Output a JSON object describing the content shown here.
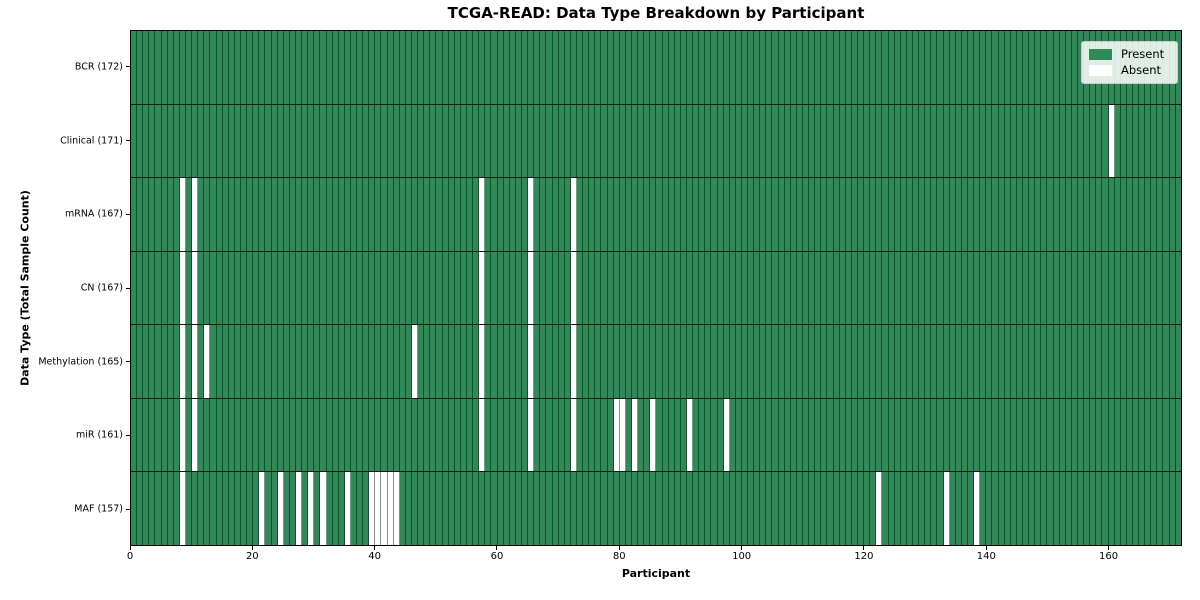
{
  "title": "TCGA-READ: Data Type Breakdown by Participant",
  "xlabel": "Participant",
  "ylabel": "Data Type (Total Sample Count)",
  "legend": {
    "items": [
      {
        "label": "Present",
        "color": "#2e8b57"
      },
      {
        "label": "Absent",
        "color": "#ffffff"
      }
    ]
  },
  "colors": {
    "present": "#2e8b57",
    "absent": "#ffffff",
    "cell_edge": "rgba(0,0,0,0.45)",
    "row_edge": "rgba(0,0,0,0.8)"
  },
  "chart_data": {
    "type": "heatmap",
    "n_participants": 172,
    "x_ticks": [
      0,
      20,
      40,
      60,
      80,
      100,
      120,
      140,
      160
    ],
    "x_range": [
      0,
      172
    ],
    "grid": "cell-edges",
    "legend_position": "upper right",
    "rows": [
      {
        "label": "BCR (172)",
        "data_type": "BCR",
        "total_samples": 172,
        "absent_participants": []
      },
      {
        "label": "Clinical (171)",
        "data_type": "Clinical",
        "total_samples": 171,
        "absent_participants": [
          160
        ]
      },
      {
        "label": "mRNA (167)",
        "data_type": "mRNA",
        "total_samples": 167,
        "absent_participants": [
          8,
          10,
          57,
          65,
          72
        ]
      },
      {
        "label": "CN (167)",
        "data_type": "CN",
        "total_samples": 167,
        "absent_participants": [
          8,
          10,
          57,
          65,
          72
        ]
      },
      {
        "label": "Methylation (165)",
        "data_type": "Methylation",
        "total_samples": 165,
        "absent_participants": [
          8,
          10,
          12,
          46,
          57,
          65,
          72
        ]
      },
      {
        "label": "miR (161)",
        "data_type": "miR",
        "total_samples": 161,
        "absent_participants": [
          8,
          10,
          57,
          65,
          72,
          79,
          80,
          82,
          85,
          91,
          97
        ]
      },
      {
        "label": "MAF (157)",
        "data_type": "MAF",
        "total_samples": 157,
        "absent_participants": [
          8,
          21,
          24,
          27,
          29,
          31,
          35,
          39,
          40,
          41,
          42,
          43,
          122,
          133,
          138
        ]
      }
    ]
  }
}
